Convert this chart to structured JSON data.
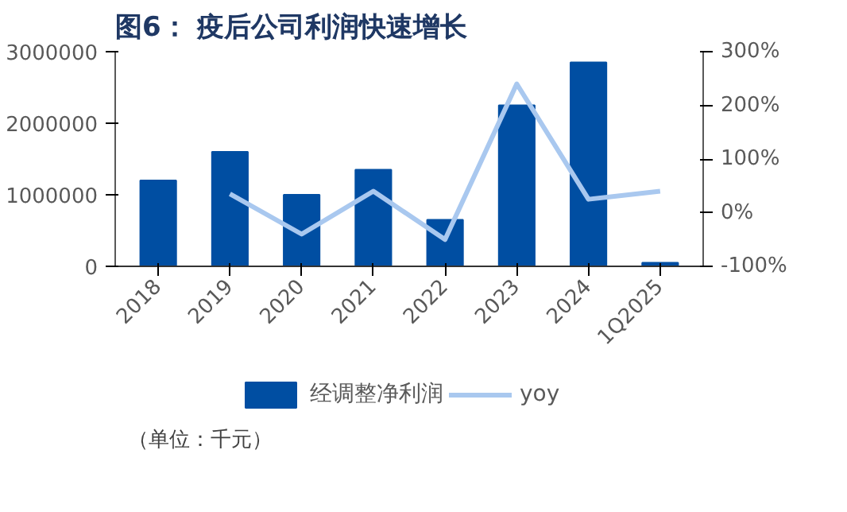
{
  "chart_data": {
    "type": "bar",
    "title": "图6： 疫后公司利润快速增长",
    "categories": [
      "2018",
      "2019",
      "2020",
      "2021",
      "2022",
      "2023",
      "2024",
      "1Q2025"
    ],
    "series": [
      {
        "name": "经调整净利润",
        "color": "#004ea2",
        "values": [
          1200000,
          1600000,
          1000000,
          1350000,
          650000,
          2250000,
          2850000,
          50000
        ]
      },
      {
        "name": "yoy",
        "type": "line",
        "axis": "y2",
        "color": "#a9c8ef",
        "values": [
          null,
          35,
          -40,
          40,
          -50,
          240,
          25,
          40
        ]
      }
    ],
    "ylim": [
      0,
      3000000
    ],
    "yticks": [
      0,
      1000000,
      2000000,
      3000000
    ],
    "y2lim": [
      -100,
      300
    ],
    "y2ticks": [
      {
        "value": -100,
        "label": "-100%"
      },
      {
        "value": 0,
        "label": "0%"
      },
      {
        "value": 100,
        "label": "100%"
      },
      {
        "value": 200,
        "label": "200%"
      },
      {
        "value": 300,
        "label": "300%"
      }
    ],
    "grid": false,
    "legend": "bottom",
    "marker": "none",
    "line_style": "solid",
    "annotations": [
      "（单位：千元）"
    ]
  }
}
